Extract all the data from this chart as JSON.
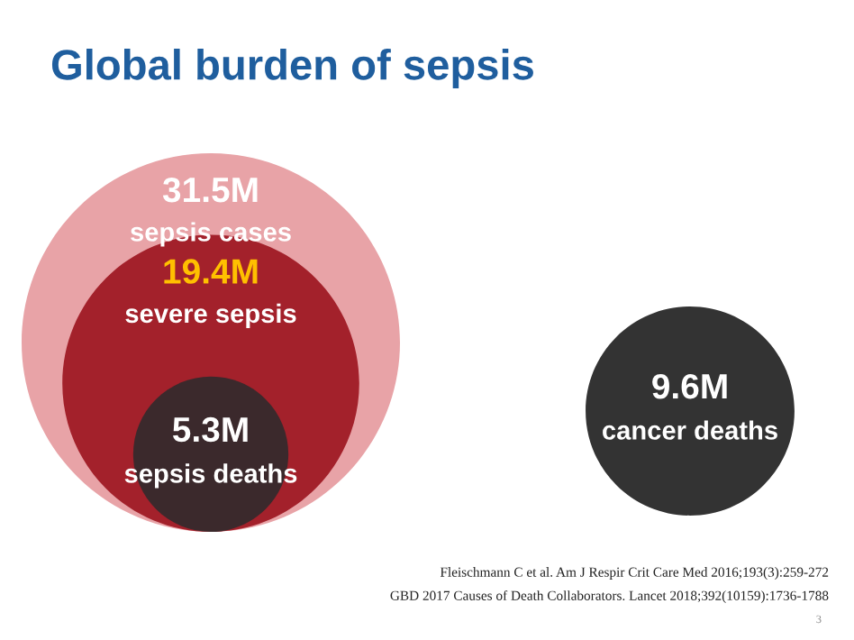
{
  "chart_data": {
    "type": "other",
    "title": "Global burden of sepsis",
    "categories": [
      "sepsis cases",
      "severe sepsis",
      "sepsis deaths",
      "cancer deaths"
    ],
    "values": [
      31.5,
      19.4,
      5.3,
      9.6
    ],
    "value_labels": [
      "31.5M",
      "19.4M",
      "5.3M",
      "9.6M"
    ],
    "colors": [
      "#e8a3a7",
      "#a3212b",
      "#3b292c",
      "#333333"
    ],
    "annotations": [
      "Fleischmann C et al. Am J Respir Crit Care Med 2016;193(3):259-272",
      "GBD 2017 Causes of Death Collaborators. Lancet 2018;392(10159):1736-1788",
      "3"
    ]
  }
}
